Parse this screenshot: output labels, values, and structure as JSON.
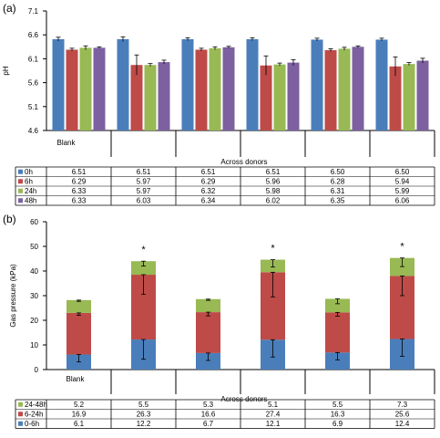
{
  "chart_data": [
    {
      "panel_label": "(a)",
      "type": "bar",
      "ylabel": "pH",
      "xlabel": "Across donors",
      "ylim": [
        4.6,
        7.1
      ],
      "yticks": [
        "7.1",
        "6.6",
        "6.1",
        "5.6",
        "5.1",
        "4.6"
      ],
      "ytick_values": [
        7.1,
        6.6,
        6.1,
        5.6,
        5.1,
        4.6
      ],
      "categories": [
        "Blank",
        "",
        "",
        "",
        "",
        ""
      ],
      "group_separators": [
        1,
        2,
        3,
        4,
        5
      ],
      "series": [
        {
          "name": "0h",
          "color": "#4a7ebb",
          "values": [
            6.51,
            6.51,
            6.51,
            6.51,
            6.5,
            6.5
          ],
          "display": [
            "6.51",
            "6.51",
            "6.51",
            "6.51",
            "6.50",
            "6.50"
          ],
          "errors": [
            0.04,
            0.05,
            0.03,
            0.03,
            0.03,
            0.03
          ]
        },
        {
          "name": "6h",
          "color": "#be4b48",
          "values": [
            6.29,
            5.97,
            6.29,
            5.96,
            6.28,
            5.94
          ],
          "display": [
            "6.29",
            "5.97",
            "6.29",
            "5.96",
            "6.28",
            "5.94"
          ],
          "errors": [
            0.03,
            0.21,
            0.03,
            0.2,
            0.03,
            0.2
          ]
        },
        {
          "name": "24h",
          "color": "#98b954",
          "values": [
            6.33,
            5.97,
            6.32,
            5.98,
            6.31,
            5.99
          ],
          "display": [
            "6.33",
            "5.97",
            "6.32",
            "5.98",
            "6.31",
            "5.99"
          ],
          "errors": [
            0.04,
            0.03,
            0.03,
            0.03,
            0.03,
            0.03
          ]
        },
        {
          "name": "48h",
          "color": "#7d60a0",
          "values": [
            6.33,
            6.03,
            6.34,
            6.02,
            6.35,
            6.06
          ],
          "display": [
            "6.33",
            "6.03",
            "6.34",
            "6.02",
            "6.35",
            "6.06"
          ],
          "errors": [
            0.02,
            0.04,
            0.02,
            0.06,
            0.02,
            0.05
          ]
        }
      ],
      "grid": false,
      "legend": "table-below"
    },
    {
      "panel_label": "(b)",
      "type": "bar",
      "stacked": true,
      "ylabel": "Gas pressure (kPa)",
      "xlabel": "Across donors",
      "ylim": [
        0,
        60
      ],
      "yticks": [
        "60",
        "50",
        "40",
        "30",
        "20",
        "10",
        "0"
      ],
      "ytick_values": [
        60,
        50,
        40,
        30,
        20,
        10,
        0
      ],
      "categories": [
        "Blank",
        "",
        "",
        "",
        "",
        ""
      ],
      "group_separators": [
        1,
        2,
        3,
        4,
        5
      ],
      "significance": [
        "",
        "*",
        "",
        "*",
        "",
        "*"
      ],
      "series": [
        {
          "name": "0-6h",
          "color": "#4a7ebb",
          "values": [
            6.1,
            12.2,
            6.7,
            12.1,
            6.9,
            12.4
          ],
          "display": [
            "6.1",
            "12.2",
            "6.7",
            "12.1",
            "6.9",
            "12.4"
          ],
          "errors": [
            3.0,
            8.0,
            3.0,
            7.0,
            3.0,
            7.0
          ]
        },
        {
          "name": "6-24h",
          "color": "#be4b48",
          "values": [
            16.9,
            26.3,
            16.6,
            27.4,
            16.3,
            25.6
          ],
          "display": [
            "16.9",
            "26.3",
            "16.6",
            "27.4",
            "16.3",
            "25.6"
          ],
          "errors": [
            1.0,
            8.0,
            1.5,
            10.0,
            1.5,
            8.0
          ]
        },
        {
          "name": "24-48h",
          "color": "#98b954",
          "values": [
            5.2,
            5.5,
            5.3,
            5.1,
            5.5,
            7.3
          ],
          "display": [
            "5.2",
            "5.5",
            "5.3",
            "5.1",
            "5.5",
            "7.3"
          ],
          "errors": [
            0.5,
            2.0,
            0.5,
            3.0,
            2.0,
            3.5
          ]
        }
      ],
      "table_order": [
        2,
        1,
        0
      ],
      "grid": false,
      "legend": "table-below"
    }
  ]
}
